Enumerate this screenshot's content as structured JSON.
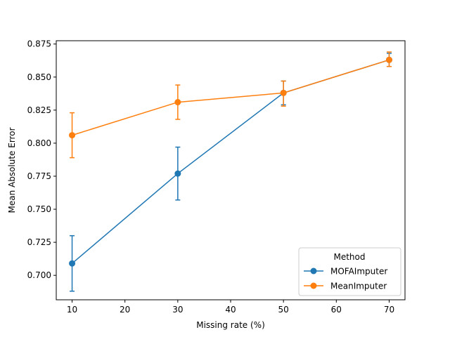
{
  "chart_data": {
    "type": "line",
    "xlabel": "Missing rate (%)",
    "ylabel": "Mean Absolute Error",
    "xlim": [
      7,
      73
    ],
    "ylim": [
      0.6815,
      0.8775
    ],
    "x_ticks": [
      10,
      20,
      30,
      40,
      50,
      60,
      70
    ],
    "x_tick_labels": [
      "10",
      "20",
      "30",
      "40",
      "50",
      "60",
      "70"
    ],
    "y_ticks": [
      0.7,
      0.725,
      0.75,
      0.775,
      0.8,
      0.825,
      0.85,
      0.875
    ],
    "y_tick_labels": [
      "0.700",
      "0.725",
      "0.750",
      "0.775",
      "0.800",
      "0.825",
      "0.850",
      "0.875"
    ],
    "grid": false,
    "legend": {
      "title": "Method",
      "placement": "lower right"
    },
    "series": [
      {
        "name": "MOFAImputer",
        "color": "#1f77b4",
        "x": [
          10,
          30,
          50,
          70
        ],
        "y": [
          0.709,
          0.777,
          0.838,
          0.863
        ],
        "err_low": [
          0.688,
          0.757,
          0.829,
          0.858
        ],
        "err_high": [
          0.73,
          0.797,
          0.847,
          0.868
        ]
      },
      {
        "name": "MeanImputer",
        "color": "#ff7f0e",
        "x": [
          10,
          30,
          50,
          70
        ],
        "y": [
          0.806,
          0.831,
          0.838,
          0.863
        ],
        "err_low": [
          0.789,
          0.818,
          0.828,
          0.858
        ],
        "err_high": [
          0.823,
          0.844,
          0.847,
          0.869
        ]
      }
    ]
  }
}
